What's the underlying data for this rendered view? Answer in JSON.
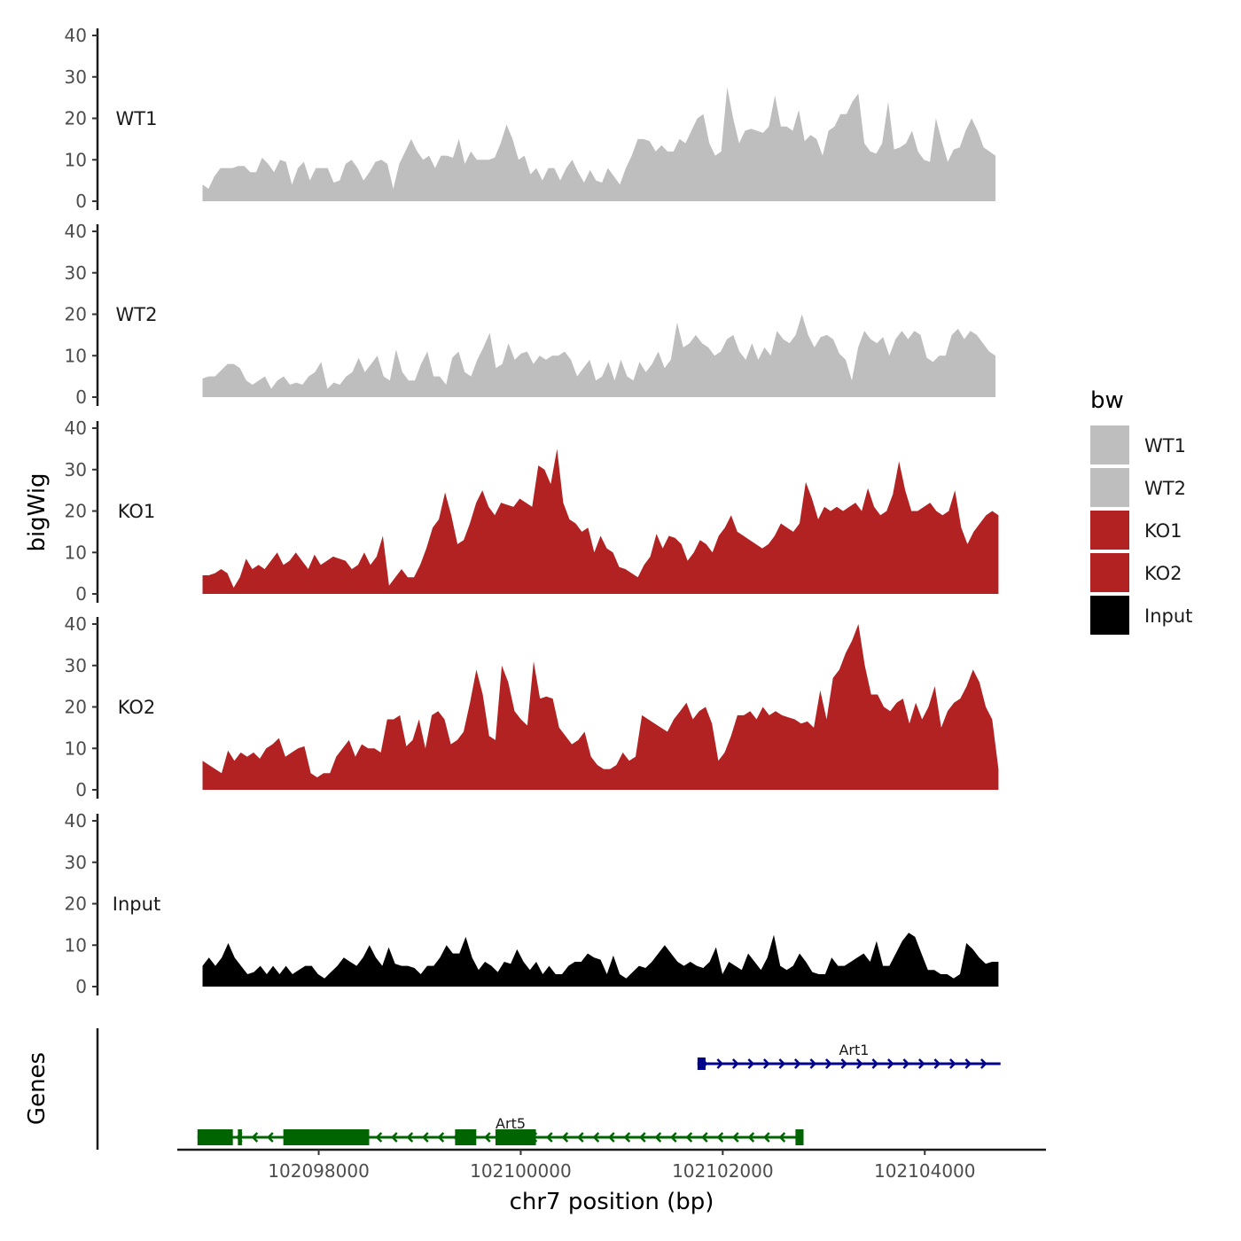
{
  "chart_data": {
    "type": "area",
    "title": "",
    "xlabel": "chr7 position (bp)",
    "ylabel": "bigWig",
    "genes_label": "Genes",
    "xlim": [
      102096600,
      102105200
    ],
    "xticks": [
      102098000,
      102100000,
      102102000,
      102104000
    ],
    "xtick_labels": [
      "102098000",
      "102100000",
      "102102000",
      102104000
    ],
    "ylim": [
      0,
      40
    ],
    "yticks": [
      0,
      10,
      20,
      30,
      40
    ],
    "ytick_labels": [
      "0",
      "10",
      "20",
      "30",
      "40"
    ],
    "legend": {
      "title": "bw",
      "position": "right",
      "entries": [
        {
          "label": "WT1",
          "color": "#bebebe"
        },
        {
          "label": "WT2",
          "color": "#bebebe"
        },
        {
          "label": "KO1",
          "color": "#b22222"
        },
        {
          "label": "KO2",
          "color": "#b22222"
        },
        {
          "label": "Input",
          "color": "#000000"
        }
      ]
    },
    "series": [
      {
        "name": "WT1",
        "color": "#bebebe",
        "x_start": 102096850,
        "x_end": 102104700,
        "values": [
          4,
          3,
          6,
          8,
          8,
          8,
          8.5,
          8.5,
          7,
          7,
          10.5,
          9,
          7,
          10,
          9.5,
          4,
          8,
          9.5,
          5,
          8,
          8,
          8,
          4.5,
          5,
          9,
          10,
          8,
          5,
          7,
          9.5,
          10,
          9,
          3,
          9,
          12,
          15,
          12,
          10,
          11,
          8,
          11,
          11,
          10.5,
          15,
          9,
          12,
          10,
          10,
          10,
          10.5,
          14,
          18.5,
          15,
          10,
          11,
          6.5,
          8,
          5,
          8,
          8,
          5,
          8,
          10,
          7,
          4.5,
          7.5,
          5,
          4.5,
          8,
          6,
          4,
          8,
          11,
          15,
          15,
          14.5,
          12,
          13.5,
          12,
          12,
          15,
          14,
          17,
          20,
          21,
          14,
          11,
          12,
          27.5,
          20,
          14,
          17,
          17.5,
          17,
          16.5,
          18,
          25.5,
          18,
          18,
          17,
          22,
          14.5,
          16,
          15,
          11,
          17,
          18,
          21,
          21,
          24,
          26,
          14,
          12,
          11.5,
          14,
          24,
          12.5,
          13,
          14,
          17,
          12,
          10,
          9.5,
          20,
          14.5,
          9.5,
          12.5,
          13,
          17,
          20,
          17,
          13,
          12,
          11
        ]
      },
      {
        "name": "WT2",
        "color": "#bebebe",
        "x_start": 102096850,
        "x_end": 102104700,
        "values": [
          4.5,
          5,
          5,
          6.5,
          8,
          8,
          7,
          4,
          3,
          4,
          5,
          2,
          4,
          5,
          3,
          3.5,
          3,
          5,
          6,
          8.5,
          2,
          3.5,
          3,
          5,
          6,
          9.5,
          6,
          8,
          10,
          5,
          4,
          11.5,
          6,
          4,
          4,
          8,
          11,
          5,
          5,
          3,
          9.5,
          11,
          6,
          5,
          9,
          12,
          15.5,
          7,
          8,
          13,
          9,
          10.5,
          11,
          8,
          10,
          9,
          10,
          10,
          11,
          9,
          5,
          7,
          9,
          4,
          5,
          8.5,
          4,
          9,
          5,
          4,
          8.5,
          6,
          8,
          11,
          7,
          9,
          18,
          12,
          13,
          15,
          13,
          12,
          10,
          11,
          14,
          15,
          11,
          9,
          13,
          9,
          12,
          10,
          16,
          14,
          13,
          15,
          20,
          15,
          12,
          14.5,
          15,
          14,
          10.5,
          9,
          4,
          12,
          16,
          14,
          13,
          14.5,
          10,
          14,
          16,
          14,
          16,
          15,
          9.5,
          8.5,
          10,
          10,
          15,
          16.5,
          14,
          16,
          15,
          13,
          11,
          10
        ]
      },
      {
        "name": "KO1",
        "color": "#b22222",
        "x_start": 102096850,
        "x_end": 102104730,
        "values": [
          4.5,
          4.5,
          5,
          6,
          5,
          1.5,
          4,
          8.5,
          6,
          7,
          6,
          8,
          10,
          7,
          8,
          10,
          8,
          6,
          9.5,
          7,
          8,
          9,
          8.5,
          8,
          6,
          7,
          10,
          7,
          9,
          14,
          2,
          4,
          6,
          4,
          4,
          7,
          11,
          16,
          18,
          24.5,
          19,
          12,
          13,
          17,
          22,
          25,
          21,
          19,
          22,
          21.5,
          21,
          23,
          22,
          21,
          31,
          30,
          26.5,
          35,
          22,
          18,
          17,
          15,
          16,
          10,
          14,
          11,
          10,
          6.5,
          6,
          5,
          4,
          7,
          9,
          14.5,
          11,
          14,
          13.5,
          12,
          8,
          10,
          13,
          12,
          10,
          14,
          16,
          19,
          15,
          14,
          13,
          12,
          11,
          12,
          14,
          17,
          16,
          15,
          17,
          27,
          23,
          18,
          21,
          20,
          21,
          20,
          21,
          22,
          20,
          25.5,
          21,
          19,
          20,
          24,
          32,
          25,
          20,
          20,
          21,
          22,
          20,
          19,
          20,
          25,
          16,
          12,
          15,
          17,
          19,
          20,
          19
        ]
      },
      {
        "name": "KO2",
        "color": "#b22222",
        "x_start": 102096850,
        "x_end": 102104730,
        "values": [
          7,
          6,
          5,
          4,
          9.5,
          7,
          9,
          8,
          9,
          7.5,
          10,
          11,
          12.5,
          8,
          9,
          10,
          10.5,
          4,
          3,
          4,
          4,
          8,
          10,
          12,
          8,
          11,
          10,
          10,
          9,
          17,
          17,
          18,
          10.5,
          12,
          17,
          10,
          18,
          19,
          17,
          11,
          12,
          14,
          21,
          29,
          23,
          13,
          12,
          30,
          26,
          19,
          17,
          15.5,
          31,
          22,
          22.5,
          22,
          15,
          13,
          11,
          12,
          14,
          8,
          6,
          5,
          5,
          6,
          9,
          7,
          8,
          18,
          17,
          16,
          15,
          14,
          17,
          19,
          21,
          17,
          19,
          20,
          16,
          7,
          9,
          13,
          18,
          18,
          19,
          17,
          20,
          18,
          19,
          18,
          17.5,
          17,
          16,
          16.5,
          15,
          24,
          17,
          27,
          29,
          33,
          36,
          40,
          30,
          23,
          23,
          20,
          19,
          21,
          22,
          16,
          21,
          17,
          20,
          25,
          15,
          19,
          21,
          22,
          25,
          29,
          26,
          20,
          17,
          5
        ]
      },
      {
        "name": "Input",
        "color": "#000000",
        "x_start": 102096850,
        "x_end": 102104730,
        "values": [
          5,
          7,
          5,
          7,
          10.5,
          7,
          5,
          3,
          3.5,
          5,
          3,
          5,
          3,
          5,
          3,
          4,
          5,
          5,
          3,
          2,
          3.5,
          5,
          7,
          6,
          5,
          7,
          10,
          7,
          5,
          9.5,
          5.5,
          5,
          5,
          4.5,
          3,
          5,
          5,
          7,
          10,
          8,
          8,
          12,
          7,
          4,
          6,
          5,
          3.5,
          6,
          5.5,
          9,
          6,
          4,
          6,
          3,
          5,
          3,
          3,
          5,
          6,
          6,
          8,
          7,
          6.5,
          3,
          7.5,
          3,
          2,
          3.5,
          5,
          4.5,
          6,
          8,
          10,
          8,
          6,
          5,
          6,
          5,
          4.5,
          6,
          9.5,
          3,
          6,
          5,
          4,
          8,
          6,
          4,
          7,
          12.5,
          5,
          4,
          5,
          8,
          6,
          3.5,
          3,
          3,
          7,
          5,
          5,
          6,
          7,
          8,
          6,
          11,
          5,
          5,
          8,
          11,
          13,
          12,
          8,
          4,
          4,
          3,
          3,
          2,
          3,
          10.5,
          9,
          7,
          5.5,
          6,
          6
        ]
      }
    ],
    "genes": [
      {
        "name": "Art1",
        "strand": "+",
        "color": "#00008b",
        "start": 102101750,
        "end": 102104750,
        "exons": [
          [
            102101750,
            102101830
          ]
        ],
        "label_x": 102103300
      },
      {
        "name": "Art5",
        "strand": "-",
        "color": "#006400",
        "start": 102096800,
        "end": 102102800,
        "exons": [
          [
            102096800,
            102097150
          ],
          [
            102097200,
            102097240
          ],
          [
            102097650,
            102098500
          ],
          [
            102099350,
            102099560
          ],
          [
            102099750,
            102100150
          ],
          [
            102102720,
            102102800
          ]
        ],
        "label_x": 102099900
      }
    ]
  }
}
